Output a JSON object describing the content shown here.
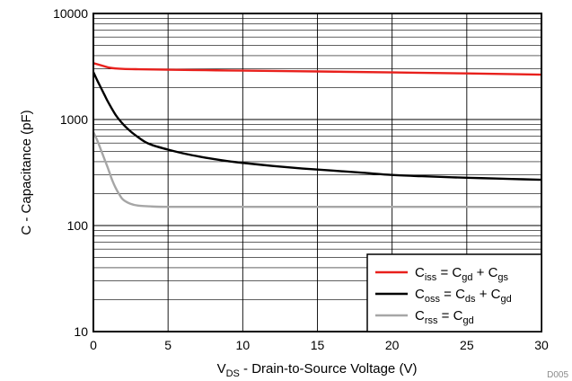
{
  "chart_data": {
    "type": "line",
    "title": "",
    "xlabel": {
      "base": "V",
      "sub": "DS",
      "rest": " - Drain-to-Source Voltage (V)"
    },
    "ylabel": "C - Capacitance (pF)",
    "xlim": [
      0,
      30
    ],
    "ylim": [
      10,
      10000
    ],
    "yscale": "log",
    "grid": true,
    "x_ticks": [
      0,
      5,
      10,
      15,
      20,
      25,
      30
    ],
    "x_tick_labels": [
      "0",
      "5",
      "10",
      "15",
      "20",
      "25",
      "30"
    ],
    "y_ticks": [
      10,
      100,
      1000,
      10000
    ],
    "y_tick_labels": [
      "10",
      "100",
      "1000",
      "10000"
    ],
    "legend_position": "bottom-right",
    "figure_code": "D005",
    "series": [
      {
        "key": "ciss",
        "color": "#e8201c",
        "legend_parts": [
          {
            "t": "C"
          },
          {
            "t": "iss",
            "sub": true
          },
          {
            "t": " = C"
          },
          {
            "t": "gd",
            "sub": true
          },
          {
            "t": " + C"
          },
          {
            "t": "gs",
            "sub": true
          }
        ],
        "points": [
          [
            0,
            3400
          ],
          [
            0.5,
            3250
          ],
          [
            1,
            3100
          ],
          [
            1.5,
            3030
          ],
          [
            2,
            3000
          ],
          [
            3,
            2980
          ],
          [
            5,
            2950
          ],
          [
            7.5,
            2920
          ],
          [
            10,
            2890
          ],
          [
            15,
            2840
          ],
          [
            20,
            2780
          ],
          [
            25,
            2720
          ],
          [
            30,
            2650
          ]
        ]
      },
      {
        "key": "coss",
        "color": "#000000",
        "legend_parts": [
          {
            "t": "C"
          },
          {
            "t": "oss",
            "sub": true
          },
          {
            "t": " = C"
          },
          {
            "t": "ds",
            "sub": true
          },
          {
            "t": " + C"
          },
          {
            "t": "gd",
            "sub": true
          }
        ],
        "points": [
          [
            0,
            2800
          ],
          [
            0.25,
            2350
          ],
          [
            0.5,
            2000
          ],
          [
            0.75,
            1700
          ],
          [
            1,
            1450
          ],
          [
            1.5,
            1100
          ],
          [
            2,
            900
          ],
          [
            2.5,
            770
          ],
          [
            3,
            680
          ],
          [
            3.5,
            610
          ],
          [
            4,
            570
          ],
          [
            5,
            520
          ],
          [
            6,
            480
          ],
          [
            7,
            450
          ],
          [
            8,
            425
          ],
          [
            9,
            405
          ],
          [
            10,
            390
          ],
          [
            12,
            365
          ],
          [
            14,
            345
          ],
          [
            16,
            330
          ],
          [
            18,
            315
          ],
          [
            20,
            300
          ],
          [
            22,
            292
          ],
          [
            24,
            285
          ],
          [
            26,
            280
          ],
          [
            28,
            275
          ],
          [
            30,
            270
          ]
        ]
      },
      {
        "key": "crss",
        "color": "#a6a6a6",
        "legend_parts": [
          {
            "t": "C"
          },
          {
            "t": "rss",
            "sub": true
          },
          {
            "t": " = C"
          },
          {
            "t": "gd",
            "sub": true
          }
        ],
        "points": [
          [
            0,
            760
          ],
          [
            0.25,
            640
          ],
          [
            0.5,
            520
          ],
          [
            0.75,
            420
          ],
          [
            1,
            340
          ],
          [
            1.25,
            270
          ],
          [
            1.5,
            225
          ],
          [
            1.75,
            195
          ],
          [
            2,
            175
          ],
          [
            2.5,
            160
          ],
          [
            3,
            154
          ],
          [
            4,
            151
          ],
          [
            5,
            150
          ],
          [
            7.5,
            150
          ],
          [
            10,
            150
          ],
          [
            15,
            150
          ],
          [
            20,
            150
          ],
          [
            25,
            150
          ],
          [
            30,
            150
          ]
        ]
      }
    ]
  }
}
